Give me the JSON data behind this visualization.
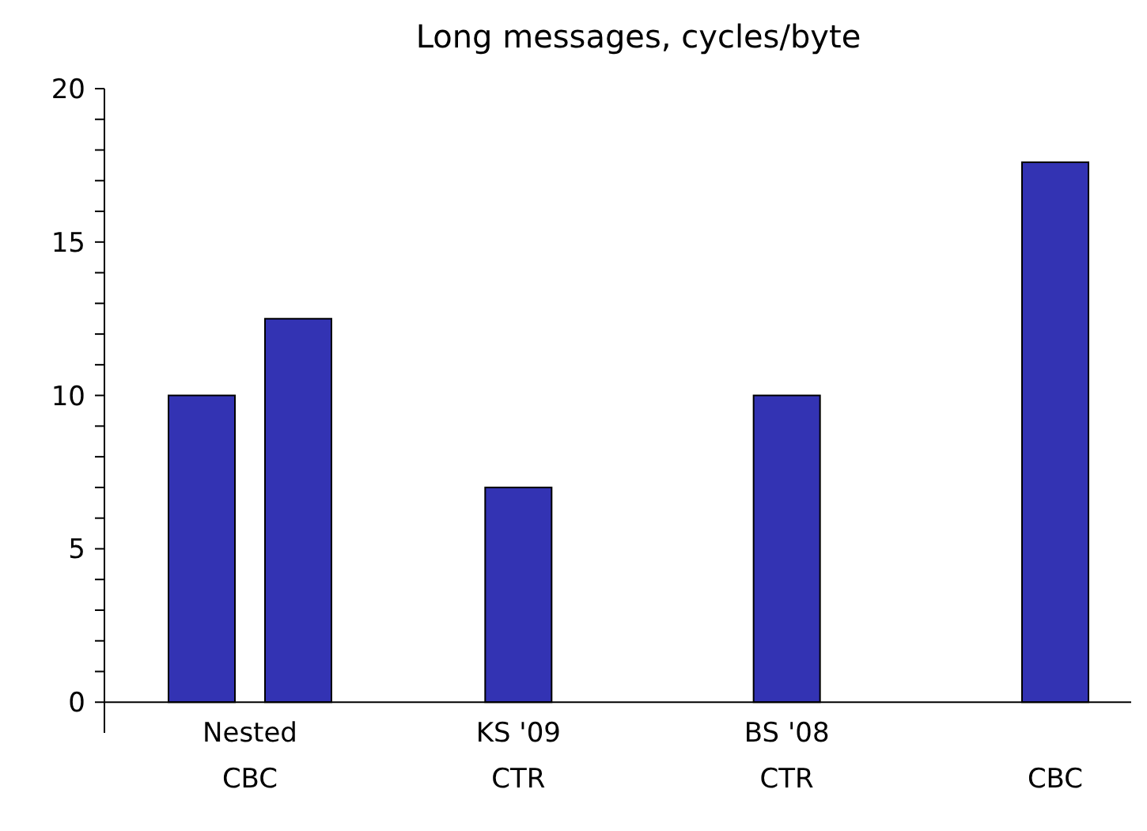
{
  "chart_data": {
    "type": "bar",
    "title": "Long messages, cycles/byte",
    "categories": [
      "Nested CBC",
      "KS '09 CTR",
      "BS '08 CTR",
      "CBC"
    ],
    "series": [
      {
        "color": "#3333b3",
        "values": [
          10,
          null,
          null,
          null
        ]
      },
      {
        "color": "#3333b3",
        "values": [
          12.5,
          7,
          10,
          17.6
        ]
      }
    ],
    "ylim": [
      -1,
      20
    ],
    "yticks": [
      0,
      {
        "value": 1,
        "label": null
      },
      {
        "value": 2,
        "label": null
      },
      {
        "value": 3,
        "label": null
      },
      {
        "value": 4,
        "label": null
      },
      5,
      {
        "value": 6,
        "label": null
      },
      {
        "value": 7,
        "label": null
      },
      {
        "value": 8,
        "label": null
      },
      {
        "value": 9,
        "label": null
      },
      10,
      {
        "value": 11,
        "label": null
      },
      {
        "value": 12,
        "label": null
      },
      {
        "value": 13,
        "label": null
      },
      {
        "value": 14,
        "label": null
      },
      15,
      {
        "value": 16,
        "label": null
      },
      {
        "value": 17,
        "label": null
      },
      {
        "value": 18,
        "label": null
      },
      {
        "value": 19,
        "label": null
      },
      20
    ],
    "grid": false
  }
}
